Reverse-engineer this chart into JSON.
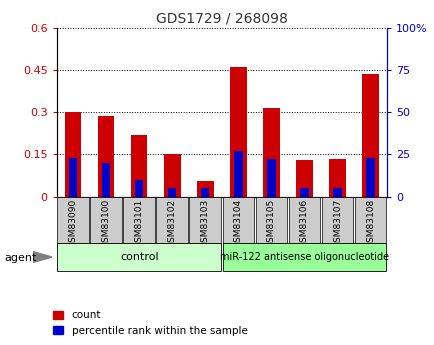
{
  "title": "GDS1729 / 268098",
  "categories": [
    "GSM83090",
    "GSM83100",
    "GSM83101",
    "GSM83102",
    "GSM83103",
    "GSM83104",
    "GSM83105",
    "GSM83106",
    "GSM83107",
    "GSM83108"
  ],
  "count_values": [
    0.3,
    0.285,
    0.22,
    0.152,
    0.055,
    0.46,
    0.315,
    0.13,
    0.135,
    0.435
  ],
  "percentile_values": [
    23,
    20,
    10,
    5,
    5,
    27,
    22,
    5,
    5,
    23
  ],
  "left_ylim": [
    0,
    0.6
  ],
  "right_ylim": [
    0,
    100
  ],
  "left_yticks": [
    0,
    0.15,
    0.3,
    0.45,
    0.6
  ],
  "right_yticks": [
    0,
    25,
    50,
    75,
    100
  ],
  "left_ytick_labels": [
    "0",
    "0.15",
    "0.3",
    "0.45",
    "0.6"
  ],
  "right_ytick_labels": [
    "0",
    "25",
    "50",
    "75",
    "100%"
  ],
  "count_color": "#cc0000",
  "percentile_color": "#0000cc",
  "bar_width": 0.5,
  "pct_bar_width": 0.25,
  "control_label": "control",
  "treatment_label": "miR-122 antisense oligonucleotide",
  "agent_label": "agent",
  "legend_count": "count",
  "legend_percentile": "percentile rank within the sample",
  "control_color": "#ccffcc",
  "treatment_color": "#99ff99",
  "tick_bg_color": "#cccccc",
  "title_color": "#333333"
}
